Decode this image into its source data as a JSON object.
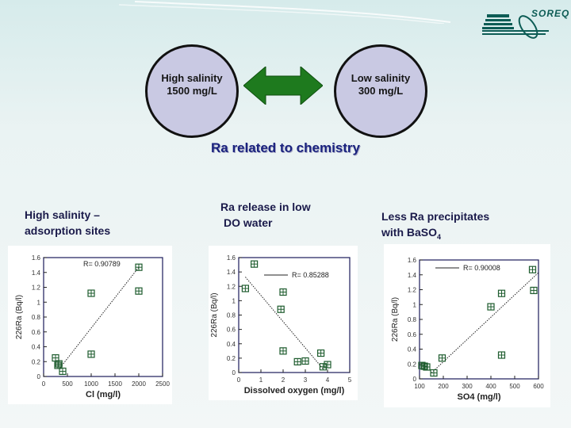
{
  "logo": {
    "text": "SOREQ",
    "icon": "soreq-logo-icon"
  },
  "diagram": {
    "left_circle": {
      "line1": "High salinity",
      "line2": "1500 mg/L"
    },
    "right_circle": {
      "line1": "Low salinity",
      "line2": "300 mg/L"
    },
    "arrow": {
      "icon": "double-arrow-icon",
      "color": "#1e7a1e"
    },
    "title": "Ra related to chemistry"
  },
  "notes": {
    "left": {
      "line1": "High salinity –",
      "line2": "adsorption sites"
    },
    "middle": {
      "line1": "Ra release in low",
      "line2": "DO water"
    },
    "right": {
      "line1": "Less Ra precipitates",
      "line2_prefix": "with  BaSO",
      "line2_sub": "4"
    }
  },
  "colors": {
    "title": "#1a237e",
    "marker": "#1e5c2e",
    "circle_fill": "#c9c9e3",
    "axis": "#1a1a5a"
  },
  "chart_data": [
    {
      "type": "scatter",
      "title": "",
      "xlabel": "Cl (mg/l)",
      "ylabel": "226Ra (Bq/l)",
      "xlim": [
        0,
        2500
      ],
      "ylim": [
        0,
        1.6
      ],
      "xticks": [
        0,
        500,
        1000,
        1500,
        2000,
        2500
      ],
      "yticks": [
        0,
        0.2,
        0.4,
        0.6,
        0.8,
        1,
        1.2,
        1.4,
        1.6
      ],
      "annotation": "R= 0.90789",
      "x": [
        250,
        300,
        320,
        400,
        1000,
        1000,
        2000,
        2000
      ],
      "y": [
        0.25,
        0.15,
        0.17,
        0.07,
        1.12,
        0.3,
        1.47,
        1.15
      ],
      "trendline": {
        "x": [
          350,
          2000
        ],
        "y": [
          0.12,
          1.47
        ]
      },
      "grid": false
    },
    {
      "type": "scatter",
      "title": "",
      "xlabel": "Dissolved oxygen (mg/l)",
      "ylabel": "226Ra (Bq/l)",
      "xlim": [
        0,
        5
      ],
      "ylim": [
        0,
        1.6
      ],
      "xticks": [
        0,
        1,
        2,
        3,
        4,
        5
      ],
      "yticks": [
        0,
        0.2,
        0.4,
        0.6,
        0.8,
        1,
        1.2,
        1.4,
        1.6
      ],
      "annotation": "R= 0.85288",
      "x": [
        0.3,
        0.7,
        1.9,
        2.0,
        2.0,
        2.65,
        3.0,
        3.7,
        3.8,
        4.0
      ],
      "y": [
        1.17,
        1.51,
        0.88,
        1.12,
        0.3,
        0.15,
        0.16,
        0.27,
        0.08,
        0.11
      ],
      "trendline": {
        "x": [
          0.3,
          3.8
        ],
        "y": [
          1.33,
          0.05
        ]
      },
      "grid": false
    },
    {
      "type": "scatter",
      "title": "",
      "xlabel": "SO4 (mg/l)",
      "ylabel": "226Ra (Bq/l)",
      "xlim": [
        100,
        600
      ],
      "ylim": [
        0,
        1.6
      ],
      "xticks": [
        100,
        200,
        300,
        400,
        500,
        600
      ],
      "yticks": [
        0,
        0.2,
        0.4,
        0.6,
        0.8,
        1,
        1.2,
        1.4,
        1.6
      ],
      "annotation": "R= 0.90008",
      "x": [
        110,
        120,
        130,
        160,
        195,
        400,
        445,
        445,
        575,
        580
      ],
      "y": [
        0.18,
        0.17,
        0.16,
        0.08,
        0.28,
        0.97,
        1.15,
        0.32,
        1.47,
        1.19
      ],
      "trendline": {
        "x": [
          150,
          600
        ],
        "y": [
          0.08,
          1.43
        ]
      },
      "grid": false
    }
  ]
}
